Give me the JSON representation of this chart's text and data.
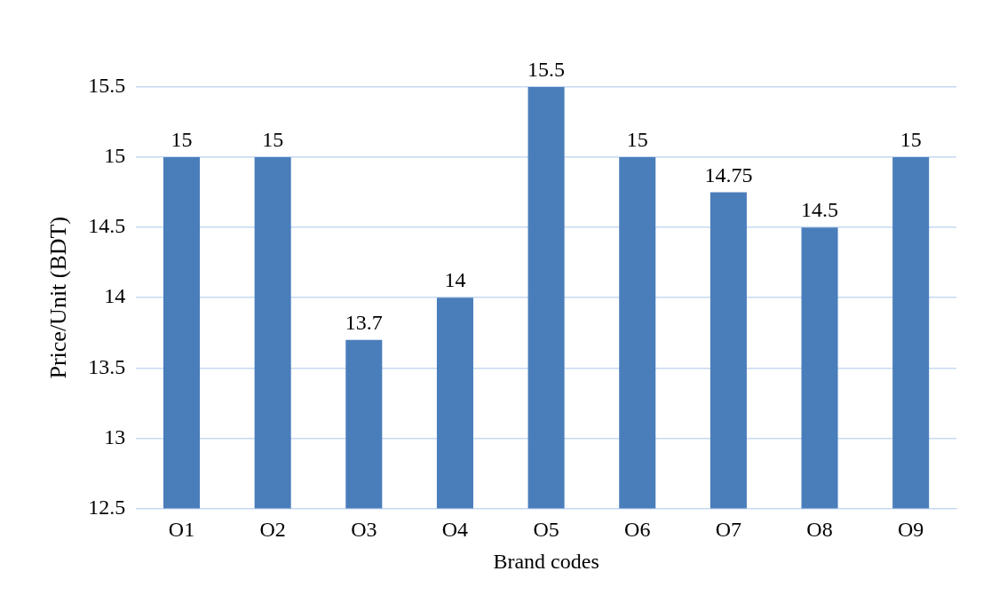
{
  "chart_data": {
    "type": "bar",
    "xlabel": "Brand codes",
    "ylabel": "Price/Unit (BDT)",
    "categories": [
      "O1",
      "O2",
      "O3",
      "O4",
      "O5",
      "O6",
      "O7",
      "O8",
      "O9"
    ],
    "values": [
      15,
      15,
      13.7,
      14,
      15.5,
      15,
      14.75,
      14.5,
      15
    ],
    "color": "#4a7ebb",
    "ylim": [
      12.5,
      15.5
    ],
    "yticks": [
      12.5,
      13,
      13.5,
      14,
      14.5,
      15,
      15.5
    ],
    "grid": "y",
    "data_labels": true,
    "legend": false
  }
}
